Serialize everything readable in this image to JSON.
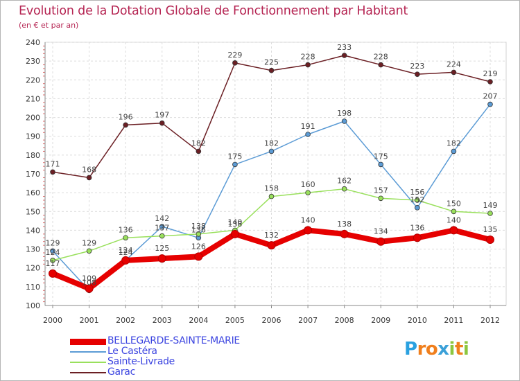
{
  "chart_data": {
    "type": "line",
    "title": "Evolution de la Dotation Globale de Fonctionnement par Habitant",
    "subtitle": "(en € et par an)",
    "x": [
      "2000",
      "2001",
      "2002",
      "2003",
      "2004",
      "2005",
      "2006",
      "2007",
      "2008",
      "2009",
      "2010",
      "2011",
      "2012"
    ],
    "ylim": [
      100,
      240
    ],
    "yticks": [
      "100",
      "110",
      "120",
      "130",
      "140",
      "150",
      "160",
      "170",
      "180",
      "190",
      "200",
      "210",
      "220",
      "230",
      "240"
    ],
    "grid": true,
    "series": [
      {
        "name": "Garac",
        "color": "#6b1f24",
        "values": [
          171,
          168,
          196,
          197,
          182,
          229,
          225,
          228,
          233,
          228,
          223,
          224,
          219
        ]
      },
      {
        "name": "Le Castéra",
        "color": "#5b9bd5",
        "values": [
          129,
          108,
          124,
          142,
          136,
          175,
          182,
          191,
          198,
          175,
          152,
          182,
          207
        ]
      },
      {
        "name": "Sainte-Livrade",
        "color": "#99e05c",
        "values": [
          124,
          129,
          136,
          137,
          138,
          140,
          158,
          160,
          162,
          157,
          156,
          150,
          149
        ]
      },
      {
        "name": "BELLEGARDE-SAINTE-MARIE",
        "color": "#e60000",
        "values": [
          117,
          109,
          124,
          125,
          126,
          138,
          132,
          140,
          138,
          134,
          136,
          140,
          135
        ]
      }
    ],
    "legend": [
      "BELLEGARDE-SAINTE-MARIE",
      "Le Castéra",
      "Sainte-Livrade",
      "Garac"
    ],
    "legend_colors": [
      "#e60000",
      "#5b9bd5",
      "#99e05c",
      "#6b1f24"
    ]
  },
  "logo": {
    "letters": [
      "P",
      "r",
      "o",
      "x",
      "i",
      "t",
      "i"
    ],
    "colors": [
      "#2aa1e0",
      "#f07f1d",
      "#f07f1d",
      "#3aa0d8",
      "#8cc63f",
      "#f07f1d",
      "#8cc63f"
    ]
  }
}
